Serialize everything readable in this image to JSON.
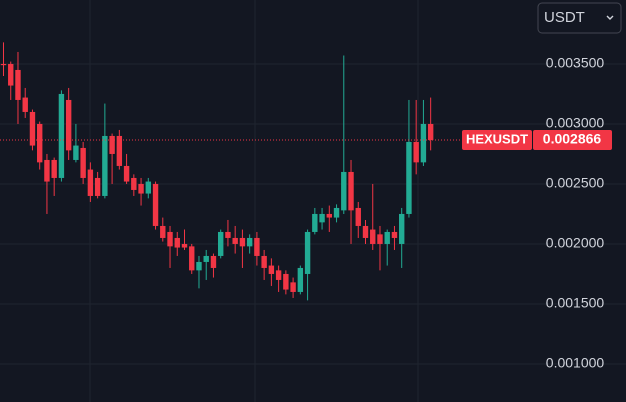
{
  "chart_data": {
    "type": "candlestick",
    "symbol": "HEXUSDT",
    "last_price": 0.002866,
    "quote_selector": "USDT",
    "up_color": "#22ab94",
    "down_color": "#f23645",
    "ylim": [
      0.000683,
      0.004033
    ],
    "yticks": [
      {
        "value": 0.001,
        "label": "0.001000"
      },
      {
        "value": 0.0015,
        "label": "0.001500"
      },
      {
        "value": 0.002,
        "label": "0.002000"
      },
      {
        "value": 0.0025,
        "label": "0.002500"
      },
      {
        "value": 0.003,
        "label": "0.003000"
      },
      {
        "value": 0.0035,
        "label": "0.003500"
      }
    ],
    "grid": true,
    "open": [
      0.0035,
      0.0035,
      0.00345,
      0.00322,
      0.0031,
      0.003,
      0.0027,
      0.0027,
      0.00255,
      0.0032,
      0.0027,
      0.0028,
      0.00262,
      0.00255,
      0.0024,
      0.0029,
      0.0029,
      0.00265,
      0.00255,
      0.0025,
      0.00242,
      0.0025,
      0.00215,
      0.0021,
      0.00205,
      0.002,
      0.00198,
      0.00178,
      0.00185,
      0.0019,
      0.0019,
      0.0021,
      0.00205,
      0.00205,
      0.00198,
      0.00205,
      0.0019,
      0.00182,
      0.00178,
      0.00175,
      0.00168,
      0.0016,
      0.00175,
      0.0021,
      0.00218,
      0.00225,
      0.00222,
      0.00228,
      0.0026,
      0.0023,
      0.00215,
      0.00212,
      0.00208,
      0.002,
      0.0021,
      0.002,
      0.00225,
      0.00285,
      0.00268,
      0.003
    ],
    "close": [
      0.00349,
      0.00332,
      0.0032,
      0.0031,
      0.00282,
      0.00268,
      0.00252,
      0.00255,
      0.00325,
      0.00278,
      0.00282,
      0.00255,
      0.0024,
      0.0024,
      0.0029,
      0.00275,
      0.00265,
      0.00252,
      0.00245,
      0.00242,
      0.00252,
      0.00215,
      0.00205,
      0.00198,
      0.00197,
      0.00197,
      0.00178,
      0.00185,
      0.0019,
      0.0018,
      0.0021,
      0.00205,
      0.002,
      0.00198,
      0.00205,
      0.0019,
      0.0018,
      0.00175,
      0.0017,
      0.00162,
      0.0016,
      0.0018,
      0.0021,
      0.00225,
      0.00225,
      0.00222,
      0.0023,
      0.0026,
      0.00228,
      0.00215,
      0.00205,
      0.002,
      0.002,
      0.0021,
      0.00205,
      0.00225,
      0.00285,
      0.00268,
      0.003,
      0.002866
    ],
    "high": [
      0.00368,
      0.00352,
      0.0036,
      0.0033,
      0.00312,
      0.00302,
      0.00275,
      0.00272,
      0.00328,
      0.0033,
      0.003,
      0.00285,
      0.00268,
      0.0026,
      0.00317,
      0.00292,
      0.00295,
      0.00275,
      0.00258,
      0.00255,
      0.00255,
      0.00252,
      0.00222,
      0.00215,
      0.0021,
      0.00212,
      0.002,
      0.0019,
      0.00195,
      0.00192,
      0.00212,
      0.0022,
      0.00215,
      0.00212,
      0.00208,
      0.0021,
      0.00195,
      0.00188,
      0.00182,
      0.00178,
      0.00172,
      0.00182,
      0.00212,
      0.0023,
      0.0023,
      0.00232,
      0.00233,
      0.00357,
      0.0027,
      0.00235,
      0.0022,
      0.0025,
      0.00215,
      0.00212,
      0.00215,
      0.0023,
      0.0032,
      0.0032,
      0.0032,
      0.00322
    ],
    "low": [
      0.0034,
      0.0032,
      0.003,
      0.00305,
      0.00278,
      0.00262,
      0.00225,
      0.0024,
      0.00252,
      0.0027,
      0.00268,
      0.0025,
      0.00235,
      0.00238,
      0.00238,
      0.0025,
      0.00262,
      0.0025,
      0.0024,
      0.00232,
      0.00238,
      0.00212,
      0.00202,
      0.0018,
      0.0019,
      0.00195,
      0.00175,
      0.00163,
      0.0017,
      0.00172,
      0.00188,
      0.00198,
      0.00192,
      0.0018,
      0.00192,
      0.00182,
      0.0017,
      0.00165,
      0.0016,
      0.00158,
      0.00155,
      0.00158,
      0.00153,
      0.00208,
      0.00212,
      0.0021,
      0.00218,
      0.00225,
      0.002,
      0.00205,
      0.002,
      0.00195,
      0.00178,
      0.00182,
      0.00195,
      0.0018,
      0.00222,
      0.00258,
      0.00265,
      0.00278
    ]
  }
}
